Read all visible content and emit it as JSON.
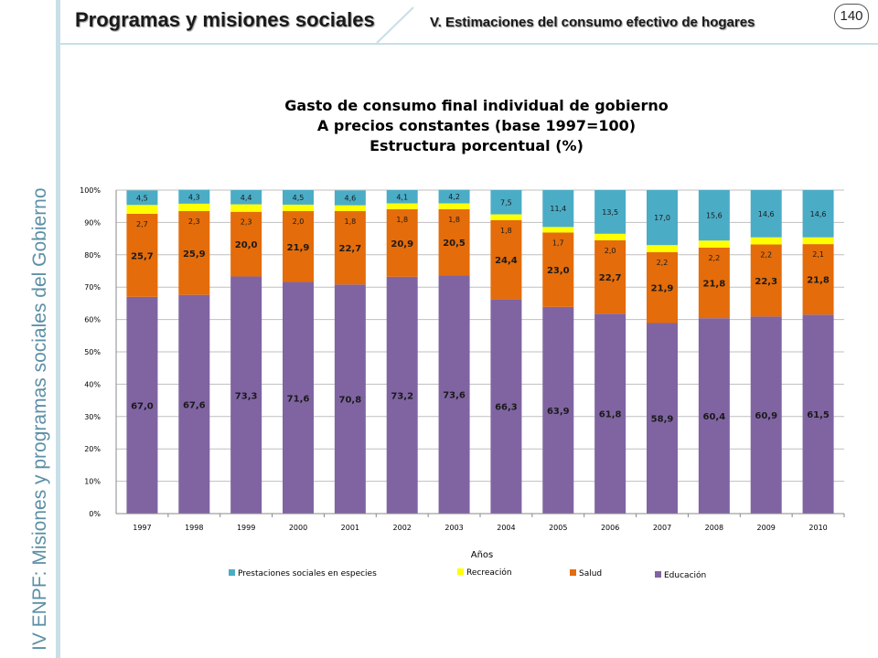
{
  "header": {
    "title": "Programas y misiones sociales",
    "subtitle": "V. Estimaciones del consumo efectivo de hogares",
    "page_number": "140"
  },
  "sidebar": {
    "text": "IV ENPF: Misiones y programas sociales del Gobierno"
  },
  "colors": {
    "educacion": "#8064a2",
    "salud": "#e46c0a",
    "recreacion": "#ffff00",
    "prestaciones": "#4bacc6"
  },
  "chart_data": {
    "type": "bar",
    "stacked": true,
    "title_lines": [
      "Gasto de consumo final individual de gobierno",
      "A precios constantes (base 1997=100)",
      "Estructura porcentual (%)"
    ],
    "xlabel": "Años",
    "ylabel": "",
    "ylim": [
      0,
      100
    ],
    "y_ticks": [
      "0%",
      "10%",
      "20%",
      "30%",
      "40%",
      "50%",
      "60%",
      "70%",
      "80%",
      "90%",
      "100%"
    ],
    "grid": true,
    "legend_position": "bottom",
    "categories": [
      "1997",
      "1998",
      "1999",
      "2000",
      "2001",
      "2002",
      "2003",
      "2004",
      "2005",
      "2006",
      "2007",
      "2008",
      "2009",
      "2010"
    ],
    "series": [
      {
        "name": "Educación",
        "key": "educacion",
        "values": [
          67.0,
          67.6,
          73.3,
          71.6,
          70.8,
          73.2,
          73.6,
          66.3,
          63.9,
          61.8,
          58.9,
          60.4,
          60.9,
          61.5
        ],
        "labels": [
          "67,0",
          "67,6",
          "73,3",
          "71,6",
          "70,8",
          "73,2",
          "73,6",
          "66,3",
          "63,9",
          "61,8",
          "58,9",
          "60,4",
          "60,9",
          "61,5"
        ]
      },
      {
        "name": "Salud",
        "key": "salud",
        "values": [
          25.7,
          25.9,
          20.0,
          21.9,
          22.7,
          20.9,
          20.5,
          24.4,
          23.0,
          22.7,
          21.9,
          21.8,
          22.3,
          21.8
        ],
        "labels": [
          "25,7",
          "25,9",
          "20,0",
          "21,9",
          "22,7",
          "20,9",
          "20,5",
          "24,4",
          "23,0",
          "22,7",
          "21,9",
          "21,8",
          "22,3",
          "21,8"
        ]
      },
      {
        "name": "Recreación",
        "key": "recreacion",
        "values": [
          2.7,
          2.3,
          2.3,
          2.0,
          1.8,
          1.8,
          1.8,
          1.8,
          1.7,
          2.0,
          2.2,
          2.2,
          2.2,
          2.1
        ],
        "labels": [
          "2,7",
          "2,3",
          "2,3",
          "2,0",
          "1,8",
          "1,8",
          "1,8",
          "1,8",
          "1,7",
          "2,0",
          "2,2",
          "2,2",
          "2,2",
          "2,1"
        ]
      },
      {
        "name": "Prestaciones sociales en especies",
        "key": "prestaciones",
        "values": [
          4.5,
          4.3,
          4.4,
          4.5,
          4.6,
          4.1,
          4.2,
          7.5,
          11.4,
          13.5,
          17.0,
          15.6,
          14.6,
          14.6
        ],
        "labels": [
          "4,5",
          "4,3",
          "4,4",
          "4,5",
          "4,6",
          "4,1",
          "4,2",
          "7,5",
          "11,4",
          "13,5",
          "17,0",
          "15,6",
          "14,6",
          "14,6"
        ]
      }
    ],
    "legend_order": [
      "prestaciones",
      "recreacion",
      "salud",
      "educacion"
    ]
  }
}
